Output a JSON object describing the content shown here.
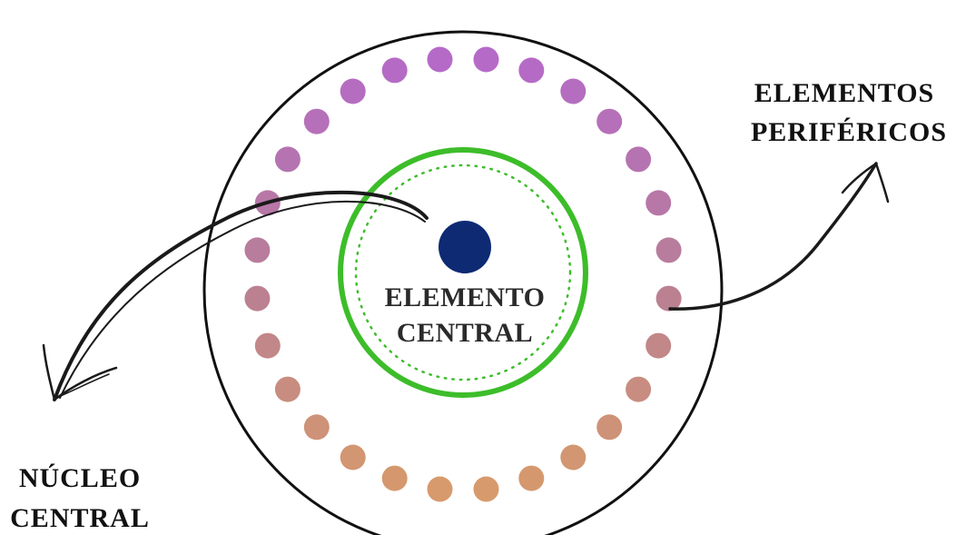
{
  "labels": {
    "peripheral_line1": "ELEMENTOS",
    "peripheral_line2": "PERIFÉRICOS",
    "center_line1": "ELEMENTO",
    "center_line2": "CENTRAL",
    "nucleus_line1": "NÚCLEO",
    "nucleus_line2": "CENTRAL"
  },
  "colors": {
    "outer_circle": "#111111",
    "central_ring": "#3dbd2a",
    "central_ring_dotted": "#3dbd2a",
    "central_element": "#0d2a73",
    "arrows": "#1a1a1a",
    "dot_gradient_top": "#b56ac8",
    "dot_gradient_mid": "#b87e96",
    "dot_gradient_bottom": "#d79a6c"
  },
  "peripheral_dot_count": 28
}
